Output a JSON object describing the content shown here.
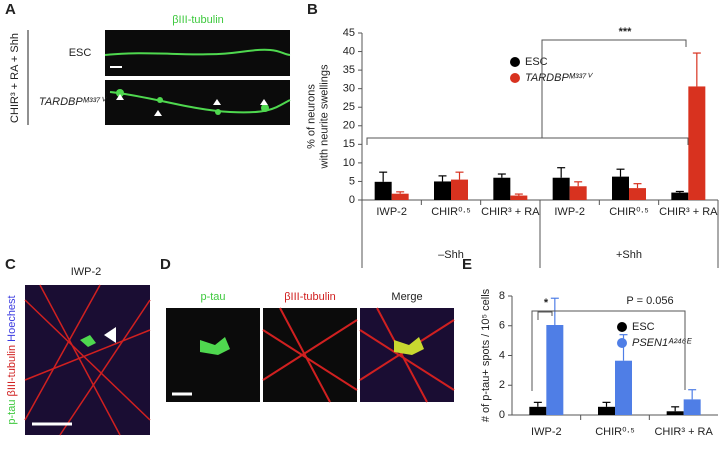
{
  "panel_letters": [
    "A",
    "B",
    "C",
    "D",
    "E"
  ],
  "panel_a": {
    "stain": "βIII-tubulin",
    "rows": [
      "ESC",
      "TARDBPᴹ³³⁷ⱽ"
    ],
    "condition": "CHIR³ + RA + Shh"
  },
  "panel_c": {
    "title": "IWP-2",
    "stains": [
      "p-tau",
      "βIII-tubulin",
      "Hoechest"
    ]
  },
  "panel_d": {
    "titles": [
      "p-tau",
      "βIII-tubulin",
      "Merge"
    ]
  },
  "chart_data": [
    {
      "type": "bar",
      "ylabel": [
        "% of neurons",
        "with neurite swellings"
      ],
      "categories": [
        "IWP-2",
        "CHIR⁰·⁵",
        "CHIR³ + RA",
        "IWP-2",
        "CHIR⁰·⁵",
        "CHIR³ + RA"
      ],
      "group_labels": [
        "–Shh",
        "+Shh"
      ],
      "series": [
        {
          "name": "ESC",
          "color": "#000000",
          "values": [
            4.9,
            5.0,
            6.0,
            6.0,
            6.3,
            2.0
          ],
          "errors": [
            2.6,
            1.5,
            1.0,
            2.7,
            2.0,
            0.3
          ]
        },
        {
          "name": "TARDBPᴹ³³⁷ⱽ",
          "color": "#d8321f",
          "values": [
            1.7,
            5.5,
            1.2,
            3.7,
            3.2,
            30.6
          ],
          "errors": [
            0.5,
            2.0,
            0.4,
            1.2,
            1.2,
            9.0
          ]
        }
      ],
      "ylim": [
        0,
        45
      ],
      "yticks": [
        0,
        5,
        10,
        15,
        20,
        25,
        30,
        35,
        40,
        45
      ],
      "annotation": "***"
    },
    {
      "type": "bar",
      "ylabel": [
        "# of p-tau+ spots / 10⁵ cells"
      ],
      "categories": [
        "IWP-2",
        "CHIR⁰·⁵",
        "CHIR³ + RA"
      ],
      "series": [
        {
          "name": "ESC",
          "color": "#000000",
          "values": [
            0.55,
            0.55,
            0.25
          ],
          "errors": [
            0.3,
            0.3,
            0.3
          ]
        },
        {
          "name": "PSEN1ᴬ²⁴⁶ᴱ",
          "color": "#4f7ee6",
          "values": [
            6.05,
            3.65,
            1.05
          ],
          "errors": [
            1.8,
            1.75,
            0.65
          ]
        }
      ],
      "ylim": [
        0,
        8
      ],
      "yticks": [
        0,
        2,
        4,
        6,
        8
      ],
      "annotations": [
        "*",
        "P = 0.056"
      ]
    }
  ]
}
